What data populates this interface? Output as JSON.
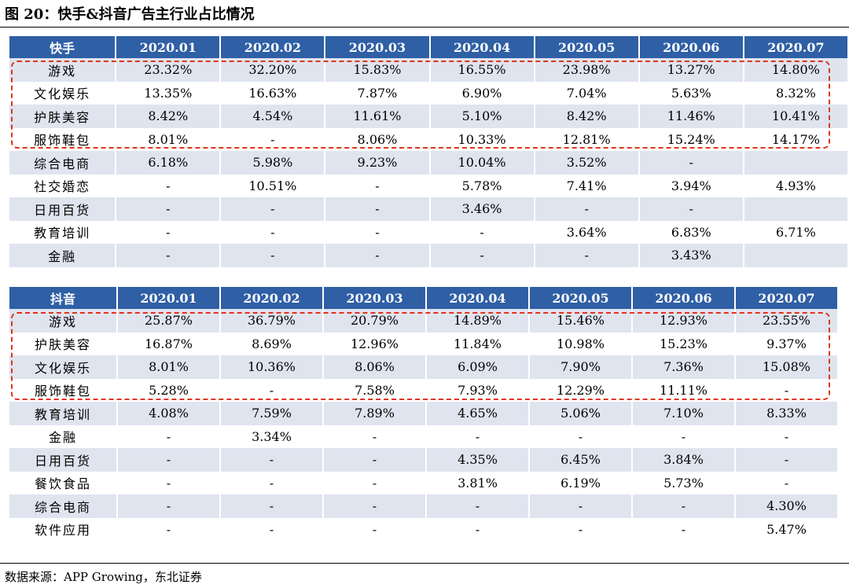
{
  "figure": {
    "title": "图 20：快手&抖音广告主行业占比情况",
    "source": "数据来源：APP Growing，东北证券"
  },
  "tables": {
    "kuaishou": {
      "header": [
        "快手",
        "2020.01",
        "2020.02",
        "2020.03",
        "2020.04",
        "2020.05",
        "2020.06",
        "2020.07"
      ],
      "rows": [
        [
          "游戏",
          "23.32%",
          "32.20%",
          "15.83%",
          "16.55%",
          "23.98%",
          "13.27%",
          "14.80%"
        ],
        [
          "文化娱乐",
          "13.35%",
          "16.63%",
          "7.87%",
          "6.90%",
          "7.04%",
          "5.63%",
          "8.32%"
        ],
        [
          "护肤美容",
          "8.42%",
          "4.54%",
          "11.61%",
          "5.10%",
          "8.42%",
          "11.46%",
          "10.41%"
        ],
        [
          "服饰鞋包",
          "8.01%",
          "-",
          "8.06%",
          "10.33%",
          "12.81%",
          "15.24%",
          "14.17%"
        ],
        [
          "综合电商",
          "6.18%",
          "5.98%",
          "9.23%",
          "10.04%",
          "3.52%",
          "-",
          ""
        ],
        [
          "社交婚恋",
          "-",
          "10.51%",
          "-",
          "5.78%",
          "7.41%",
          "3.94%",
          "4.93%"
        ],
        [
          "日用百货",
          "-",
          "-",
          "-",
          "3.46%",
          "-",
          "-",
          ""
        ],
        [
          "教育培训",
          "-",
          "-",
          "-",
          "-",
          "3.64%",
          "6.83%",
          "6.71%"
        ],
        [
          "金融",
          "-",
          "-",
          "-",
          "-",
          "-",
          "3.43%",
          ""
        ]
      ]
    },
    "douyin": {
      "header": [
        "抖音",
        "2020.01",
        "2020.02",
        "2020.03",
        "2020.04",
        "2020.05",
        "2020.06",
        "2020.07"
      ],
      "rows": [
        [
          "游戏",
          "25.87%",
          "36.79%",
          "20.79%",
          "14.89%",
          "15.46%",
          "12.93%",
          "23.55%"
        ],
        [
          "护肤美容",
          "16.87%",
          "8.69%",
          "12.96%",
          "11.84%",
          "10.98%",
          "15.23%",
          "9.37%"
        ],
        [
          "文化娱乐",
          "8.01%",
          "10.36%",
          "8.06%",
          "6.09%",
          "7.90%",
          "7.36%",
          "15.08%"
        ],
        [
          "服饰鞋包",
          "5.28%",
          "-",
          "7.58%",
          "7.93%",
          "12.29%",
          "11.11%",
          "-"
        ],
        [
          "教育培训",
          "4.08%",
          "7.59%",
          "7.89%",
          "4.65%",
          "5.06%",
          "7.10%",
          "8.33%"
        ],
        [
          "金融",
          "-",
          "3.34%",
          "-",
          "-",
          "-",
          "-",
          "-"
        ],
        [
          "日用百货",
          "-",
          "-",
          "-",
          "4.35%",
          "6.45%",
          "3.84%",
          "-"
        ],
        [
          "餐饮食品",
          "-",
          "-",
          "-",
          "3.81%",
          "6.19%",
          "5.73%",
          "-"
        ],
        [
          "综合电商",
          "-",
          "-",
          "-",
          "-",
          "-",
          "-",
          "4.30%"
        ],
        [
          "软件应用",
          "-",
          "-",
          "-",
          "-",
          "-",
          "-",
          "5.47%"
        ]
      ]
    }
  },
  "colors": {
    "header_bg": "#2f5fa5",
    "stripe_bg": "#dfe4ef",
    "highlight_box": "#e0341a"
  }
}
